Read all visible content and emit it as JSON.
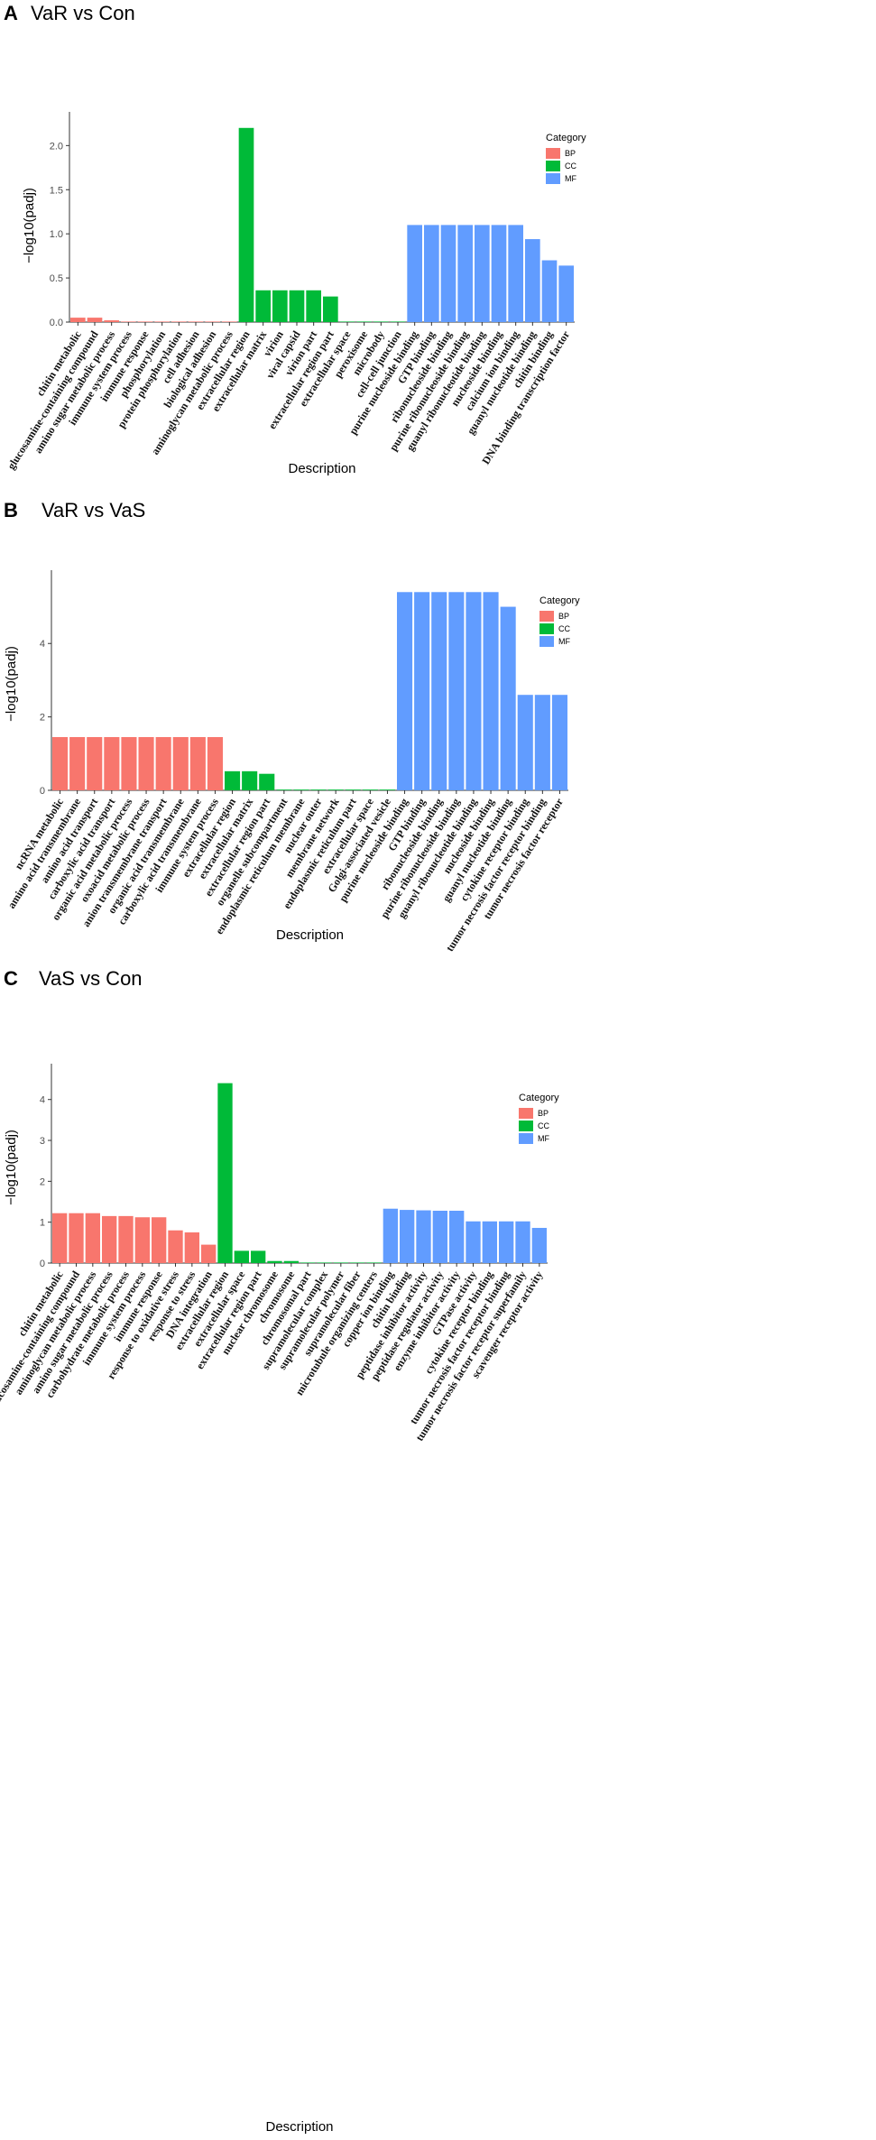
{
  "chart_data": [
    {
      "type": "bar",
      "panel": "A",
      "title": "VaR vs Con",
      "xlabel": "Description",
      "ylabel": "−log10(padj)",
      "ylim": [
        0,
        2.3
      ],
      "yticks": [
        0.0,
        0.5,
        1.0,
        1.5,
        2.0
      ],
      "ytick_labels": [
        "0.0",
        "0.5",
        "1.0",
        "1.5",
        "2.0"
      ],
      "legend": {
        "title": "Category",
        "entries": [
          "BP",
          "CC",
          "MF"
        ],
        "position": "right"
      },
      "colors": {
        "BP": "#f8766d",
        "CC": "#00ba38",
        "MF": "#619cff"
      },
      "categories": [
        "chitin metabolic",
        "glucosamine-containing compound",
        "amino sugar metabolic process",
        "immune system process",
        "immune response",
        "phosphorylation",
        "protein phosphorylation",
        "cell adhesion",
        "biological adhesion",
        "aminoglycan metabolic process",
        "extracellular region",
        "extracellular matrix",
        "virion",
        "viral capsid",
        "virion part",
        "extracellular region part",
        "extracellular space",
        "peroxisome",
        "microbody",
        "cell-cell junction",
        "purine nucleoside binding",
        "GTP binding",
        "ribonucleoside binding",
        "purine ribonucleoside binding",
        "guanyl ribonucleotide binding",
        "nucleoside binding",
        "calcium ion binding",
        "guanyl nucleotide binding",
        "chitin binding",
        "DNA binding transcription factor"
      ],
      "groups": [
        "BP",
        "BP",
        "BP",
        "BP",
        "BP",
        "BP",
        "BP",
        "BP",
        "BP",
        "BP",
        "CC",
        "CC",
        "CC",
        "CC",
        "CC",
        "CC",
        "CC",
        "CC",
        "CC",
        "CC",
        "MF",
        "MF",
        "MF",
        "MF",
        "MF",
        "MF",
        "MF",
        "MF",
        "MF",
        "MF"
      ],
      "values": [
        0.05,
        0.05,
        0.02,
        0.003,
        0.003,
        0.003,
        0.003,
        0.003,
        0.003,
        0.003,
        2.2,
        0.36,
        0.36,
        0.36,
        0.36,
        0.29,
        0.003,
        0.003,
        0.003,
        0.003,
        1.1,
        1.1,
        1.1,
        1.1,
        1.1,
        1.1,
        1.1,
        0.94,
        0.7,
        0.64
      ]
    },
    {
      "type": "bar",
      "panel": "B",
      "title": "VaR vs VaS",
      "xlabel": "Description",
      "ylabel": "−log10(padj)",
      "ylim": [
        0,
        5.8
      ],
      "yticks": [
        0,
        2,
        4
      ],
      "ytick_labels": [
        "0",
        "2",
        "4"
      ],
      "legend": {
        "title": "Category",
        "entries": [
          "BP",
          "CC",
          "MF"
        ],
        "position": "right"
      },
      "colors": {
        "BP": "#f8766d",
        "CC": "#00ba38",
        "MF": "#619cff"
      },
      "categories": [
        "ncRNA metabolic",
        "amino acid transmembrane",
        "amino acid transport",
        "carboxylic acid transport",
        "organic acid metabolic process",
        "oxoacid metabolic process",
        "anion transmembrane transport",
        "organic acid transmembrane",
        "carboxylic acid transmembrane",
        "immune system process",
        "extracellular region",
        "extracellular matrix",
        "extracellular region part",
        "organelle subcompartment",
        "endoplasmic reticulum membrane",
        "nuclear outer",
        "membrane network",
        "endoplasmic reticulum part",
        "extracellular space",
        "Golgi-associated vesicle",
        "purine nucleoside binding",
        "GTP binding",
        "ribonucleoside binding",
        "purine ribonucleoside binding",
        "guanyl ribonucleotide binding",
        "nucleoside binding",
        "guanyl nucleotide binding",
        "cytokine receptor binding",
        "tumor necrosis factor receptor binding",
        "tumor necrosis factor receptor"
      ],
      "groups": [
        "BP",
        "BP",
        "BP",
        "BP",
        "BP",
        "BP",
        "BP",
        "BP",
        "BP",
        "BP",
        "CC",
        "CC",
        "CC",
        "CC",
        "CC",
        "CC",
        "CC",
        "CC",
        "CC",
        "CC",
        "MF",
        "MF",
        "MF",
        "MF",
        "MF",
        "MF",
        "MF",
        "MF",
        "MF",
        "MF"
      ],
      "values": [
        1.45,
        1.45,
        1.45,
        1.45,
        1.45,
        1.45,
        1.45,
        1.45,
        1.45,
        1.45,
        0.52,
        0.52,
        0.45,
        0.02,
        0.02,
        0.02,
        0.02,
        0.02,
        0.02,
        0.02,
        5.4,
        5.4,
        5.4,
        5.4,
        5.4,
        5.4,
        5.0,
        2.6,
        2.6,
        2.6
      ]
    },
    {
      "type": "bar",
      "panel": "C",
      "title": "VaS vs Con",
      "xlabel": "Description",
      "ylabel": "−log10(padj)",
      "ylim": [
        0,
        4.7
      ],
      "yticks": [
        0,
        1,
        2,
        3,
        4
      ],
      "ytick_labels": [
        "0",
        "1",
        "2",
        "3",
        "4"
      ],
      "legend": {
        "title": "Category",
        "entries": [
          "BP",
          "CC",
          "MF"
        ],
        "position": "right"
      },
      "colors": {
        "BP": "#f8766d",
        "CC": "#00ba38",
        "MF": "#619cff"
      },
      "categories": [
        "chitin metabolic",
        "glucosamine-containing compound",
        "aminoglycan metabolic process",
        "amino sugar metabolic process",
        "carbohydrate metabolic process",
        "immune system process",
        "immune response",
        "response to oxidative stress",
        "response to stress",
        "DNA integration",
        "extracellular region",
        "extracellular space",
        "extracellular region part",
        "nuclear chromosome",
        "chromosome",
        "chromosomal part",
        "supramolecular complex",
        "supramolecular polymer",
        "supramolecular fiber",
        "microtubule organizing centers",
        "copper ion binding",
        "chitin binding",
        "peptidase inhibitor activity",
        "peptidase regulator activity",
        "enzyme inhibitor activity",
        "GTPase activity",
        "cytokine receptor binding",
        "tumor necrosis factor receptor binding",
        "tumor necrosis factor receptor superfamily",
        "scavenger receptor activity"
      ],
      "groups": [
        "BP",
        "BP",
        "BP",
        "BP",
        "BP",
        "BP",
        "BP",
        "BP",
        "BP",
        "BP",
        "CC",
        "CC",
        "CC",
        "CC",
        "CC",
        "CC",
        "CC",
        "CC",
        "CC",
        "CC",
        "MF",
        "MF",
        "MF",
        "MF",
        "MF",
        "MF",
        "MF",
        "MF",
        "MF",
        "MF"
      ],
      "values": [
        1.22,
        1.22,
        1.22,
        1.15,
        1.15,
        1.12,
        1.12,
        0.8,
        0.75,
        0.45,
        4.4,
        0.3,
        0.3,
        0.05,
        0.05,
        0,
        0,
        0,
        0,
        0,
        1.33,
        1.3,
        1.29,
        1.28,
        1.28,
        1.02,
        1.02,
        1.02,
        1.02,
        0.86
      ]
    }
  ]
}
